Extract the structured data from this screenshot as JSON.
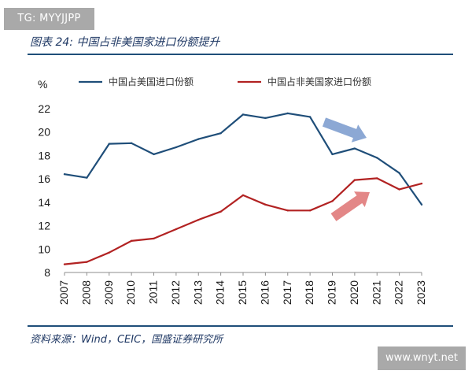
{
  "watermark": {
    "tag": "TG: MYYJJPP",
    "site": "www.wnyt.net"
  },
  "figure": {
    "title": "图表 24:  中国占非美国家进口份额提升",
    "source": "资料来源：Wind，CEIC，国盛证券研究所"
  },
  "chart_data": {
    "type": "line",
    "title": "图表 24:  中国占非美国家进口份额提升",
    "ylabel": "%",
    "xlabel": "",
    "ylim": [
      8,
      22
    ],
    "yticks": [
      8,
      10,
      12,
      14,
      16,
      18,
      20,
      22
    ],
    "categories": [
      "2007",
      "2008",
      "2009",
      "2010",
      "2011",
      "2012",
      "2013",
      "2014",
      "2015",
      "2016",
      "2017",
      "2018",
      "2019",
      "2020",
      "2021",
      "2022",
      "2023"
    ],
    "legend_position": "top",
    "grid": false,
    "series": [
      {
        "name": "中国占美国进口份额",
        "color": "#1f4e79",
        "values": [
          16.4,
          16.1,
          19.0,
          19.05,
          18.1,
          18.7,
          19.4,
          19.9,
          21.5,
          21.2,
          21.6,
          21.3,
          18.1,
          18.6,
          17.8,
          16.5,
          13.8
        ]
      },
      {
        "name": "中国占非美国家进口份额",
        "color": "#b22222",
        "values": [
          8.7,
          8.9,
          9.7,
          10.7,
          10.9,
          11.7,
          12.5,
          13.2,
          14.6,
          13.8,
          13.3,
          13.3,
          14.1,
          15.9,
          16.05,
          15.1,
          15.6
        ]
      }
    ],
    "annotations": [
      {
        "type": "arrow-down",
        "color": "#7f9fcf"
      },
      {
        "type": "arrow-up",
        "color": "#e07a7a"
      }
    ]
  }
}
